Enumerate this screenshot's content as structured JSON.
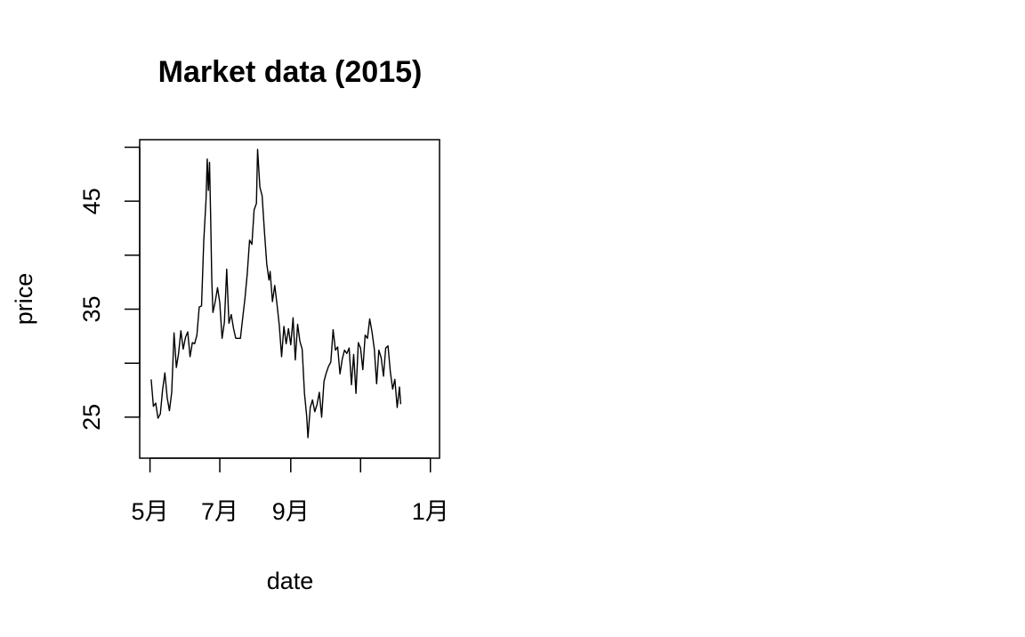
{
  "chart_data": {
    "type": "line",
    "title": "Market data (2015)",
    "xlabel": "date",
    "ylabel": "price",
    "x_ticks": [
      {
        "date": "2015-05-01",
        "label": "5月"
      },
      {
        "date": "2015-07-01",
        "label": "7月"
      },
      {
        "date": "2015-09-01",
        "label": "9月"
      },
      {
        "date": "2015-11-01",
        "label": ""
      },
      {
        "date": "2016-01-01",
        "label": "1月"
      }
    ],
    "y_ticks": [
      {
        "value": 25,
        "label": "25"
      },
      {
        "value": 30,
        "label": ""
      },
      {
        "value": 35,
        "label": "35"
      },
      {
        "value": 40,
        "label": ""
      },
      {
        "value": 45,
        "label": "45"
      },
      {
        "value": 50,
        "label": ""
      }
    ],
    "xlim": [
      "2015-04-22",
      "2016-01-09"
    ],
    "ylim": [
      21.2,
      50.7
    ],
    "grid": false,
    "legend": "none",
    "line_color": "#000000",
    "series": [
      {
        "points": [
          [
            "2015-05-02",
            28.5
          ],
          [
            "2015-05-04",
            26.0
          ],
          [
            "2015-05-06",
            26.3
          ],
          [
            "2015-05-08",
            24.9
          ],
          [
            "2015-05-10",
            25.3
          ],
          [
            "2015-05-12",
            27.5
          ],
          [
            "2015-05-14",
            29.1
          ],
          [
            "2015-05-16",
            26.8
          ],
          [
            "2015-05-18",
            25.6
          ],
          [
            "2015-05-20",
            27.3
          ],
          [
            "2015-05-22",
            32.8
          ],
          [
            "2015-05-24",
            29.6
          ],
          [
            "2015-05-26",
            30.9
          ],
          [
            "2015-05-28",
            33.0
          ],
          [
            "2015-05-30",
            31.3
          ],
          [
            "2015-06-01",
            32.4
          ],
          [
            "2015-06-03",
            32.9
          ],
          [
            "2015-06-05",
            30.6
          ],
          [
            "2015-06-07",
            31.9
          ],
          [
            "2015-06-09",
            31.8
          ],
          [
            "2015-06-11",
            32.6
          ],
          [
            "2015-06-13",
            35.2
          ],
          [
            "2015-06-15",
            35.3
          ],
          [
            "2015-06-17",
            41.3
          ],
          [
            "2015-06-19",
            45.2
          ],
          [
            "2015-06-20",
            48.9
          ],
          [
            "2015-06-21",
            46.0
          ],
          [
            "2015-06-22",
            48.6
          ],
          [
            "2015-06-23",
            43.8
          ],
          [
            "2015-06-24",
            37.8
          ],
          [
            "2015-06-25",
            34.7
          ],
          [
            "2015-06-27",
            35.7
          ],
          [
            "2015-06-29",
            37.0
          ],
          [
            "2015-07-01",
            35.6
          ],
          [
            "2015-07-03",
            32.3
          ],
          [
            "2015-07-05",
            33.8
          ],
          [
            "2015-07-07",
            38.7
          ],
          [
            "2015-07-09",
            33.7
          ],
          [
            "2015-07-11",
            34.5
          ],
          [
            "2015-07-13",
            33.2
          ],
          [
            "2015-07-15",
            32.3
          ],
          [
            "2015-07-17",
            32.3
          ],
          [
            "2015-07-19",
            32.3
          ],
          [
            "2015-07-21",
            34.2
          ],
          [
            "2015-07-23",
            36.0
          ],
          [
            "2015-07-25",
            38.3
          ],
          [
            "2015-07-27",
            41.4
          ],
          [
            "2015-07-29",
            41.0
          ],
          [
            "2015-07-31",
            44.2
          ],
          [
            "2015-08-02",
            44.8
          ],
          [
            "2015-08-03",
            49.8
          ],
          [
            "2015-08-05",
            46.3
          ],
          [
            "2015-08-07",
            45.5
          ],
          [
            "2015-08-09",
            42.2
          ],
          [
            "2015-08-11",
            39.2
          ],
          [
            "2015-08-13",
            37.7
          ],
          [
            "2015-08-14",
            38.5
          ],
          [
            "2015-08-16",
            35.7
          ],
          [
            "2015-08-18",
            37.2
          ],
          [
            "2015-08-20",
            35.4
          ],
          [
            "2015-08-22",
            33.5
          ],
          [
            "2015-08-24",
            30.6
          ],
          [
            "2015-08-26",
            33.4
          ],
          [
            "2015-08-28",
            31.8
          ],
          [
            "2015-08-30",
            33.2
          ],
          [
            "2015-09-01",
            31.7
          ],
          [
            "2015-09-03",
            34.2
          ],
          [
            "2015-09-05",
            30.3
          ],
          [
            "2015-09-07",
            33.6
          ],
          [
            "2015-09-09",
            32.0
          ],
          [
            "2015-09-11",
            31.3
          ],
          [
            "2015-09-13",
            27.2
          ],
          [
            "2015-09-15",
            25.0
          ],
          [
            "2015-09-16",
            23.1
          ],
          [
            "2015-09-18",
            25.9
          ],
          [
            "2015-09-20",
            26.6
          ],
          [
            "2015-09-22",
            25.5
          ],
          [
            "2015-09-24",
            26.2
          ],
          [
            "2015-09-26",
            27.3
          ],
          [
            "2015-09-28",
            25.0
          ],
          [
            "2015-09-30",
            28.3
          ],
          [
            "2015-10-02",
            29.1
          ],
          [
            "2015-10-04",
            29.7
          ],
          [
            "2015-10-06",
            30.1
          ],
          [
            "2015-10-08",
            33.1
          ],
          [
            "2015-10-10",
            31.2
          ],
          [
            "2015-10-12",
            31.5
          ],
          [
            "2015-10-14",
            29.0
          ],
          [
            "2015-10-16",
            30.4
          ],
          [
            "2015-10-18",
            31.2
          ],
          [
            "2015-10-20",
            30.9
          ],
          [
            "2015-10-22",
            31.4
          ],
          [
            "2015-10-24",
            28.0
          ],
          [
            "2015-10-26",
            30.8
          ],
          [
            "2015-10-28",
            27.2
          ],
          [
            "2015-10-30",
            31.9
          ],
          [
            "2015-11-01",
            31.4
          ],
          [
            "2015-11-03",
            29.4
          ],
          [
            "2015-11-05",
            32.6
          ],
          [
            "2015-11-07",
            32.3
          ],
          [
            "2015-11-09",
            34.1
          ],
          [
            "2015-11-11",
            32.9
          ],
          [
            "2015-11-13",
            31.3
          ],
          [
            "2015-11-15",
            28.1
          ],
          [
            "2015-11-17",
            31.2
          ],
          [
            "2015-11-19",
            30.5
          ],
          [
            "2015-11-21",
            28.8
          ],
          [
            "2015-11-23",
            31.4
          ],
          [
            "2015-11-25",
            31.6
          ],
          [
            "2015-11-27",
            29.2
          ],
          [
            "2015-11-29",
            27.6
          ],
          [
            "2015-12-01",
            28.5
          ],
          [
            "2015-12-03",
            25.9
          ],
          [
            "2015-12-05",
            27.8
          ],
          [
            "2015-12-06",
            26.2
          ]
        ]
      }
    ]
  }
}
